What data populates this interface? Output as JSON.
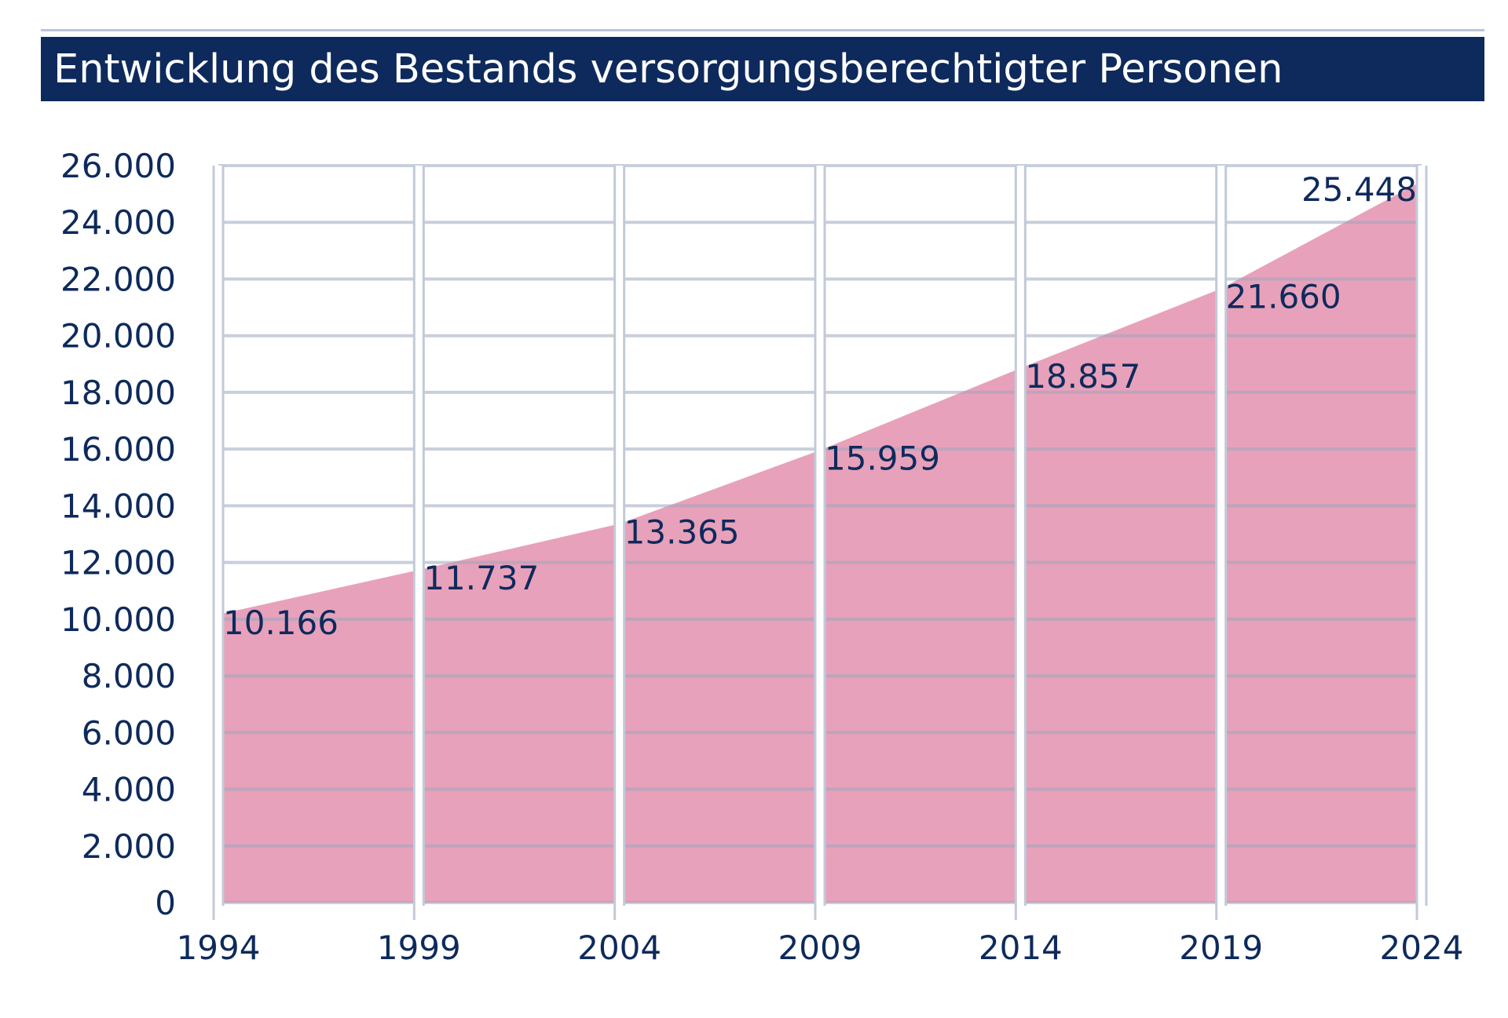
{
  "chart_data": {
    "type": "area",
    "title": "Entwicklung des Bestands versorgungsberechtigter Personen",
    "xlabel": "",
    "ylabel": "",
    "x": [
      1994,
      1999,
      2004,
      2009,
      2014,
      2019,
      2024
    ],
    "x_tick_labels": [
      "1994",
      "1999",
      "2004",
      "2009",
      "2014",
      "2019",
      "2024"
    ],
    "values": [
      10166,
      11737,
      13365,
      15959,
      18857,
      21660,
      25448
    ],
    "data_labels": [
      "10.166",
      "11.737",
      "13.365",
      "15.959",
      "18.857",
      "21.660",
      "25.448"
    ],
    "ylim": [
      0,
      26000
    ],
    "y_ticks": [
      0,
      2000,
      4000,
      6000,
      8000,
      10000,
      12000,
      14000,
      16000,
      18000,
      20000,
      22000,
      24000,
      26000
    ],
    "y_tick_labels": [
      "0",
      "2.000",
      "4.000",
      "6.000",
      "8.000",
      "10.000",
      "12.000",
      "14.000",
      "16.000",
      "18.000",
      "20.000",
      "22.000",
      "24.000",
      "26.000"
    ],
    "grid": true,
    "legend": "none",
    "colors": {
      "area": "#e8a1ba",
      "title_background": "#0e2a5c",
      "text": "#0e2a5c",
      "grid": "#c2cad8"
    }
  }
}
